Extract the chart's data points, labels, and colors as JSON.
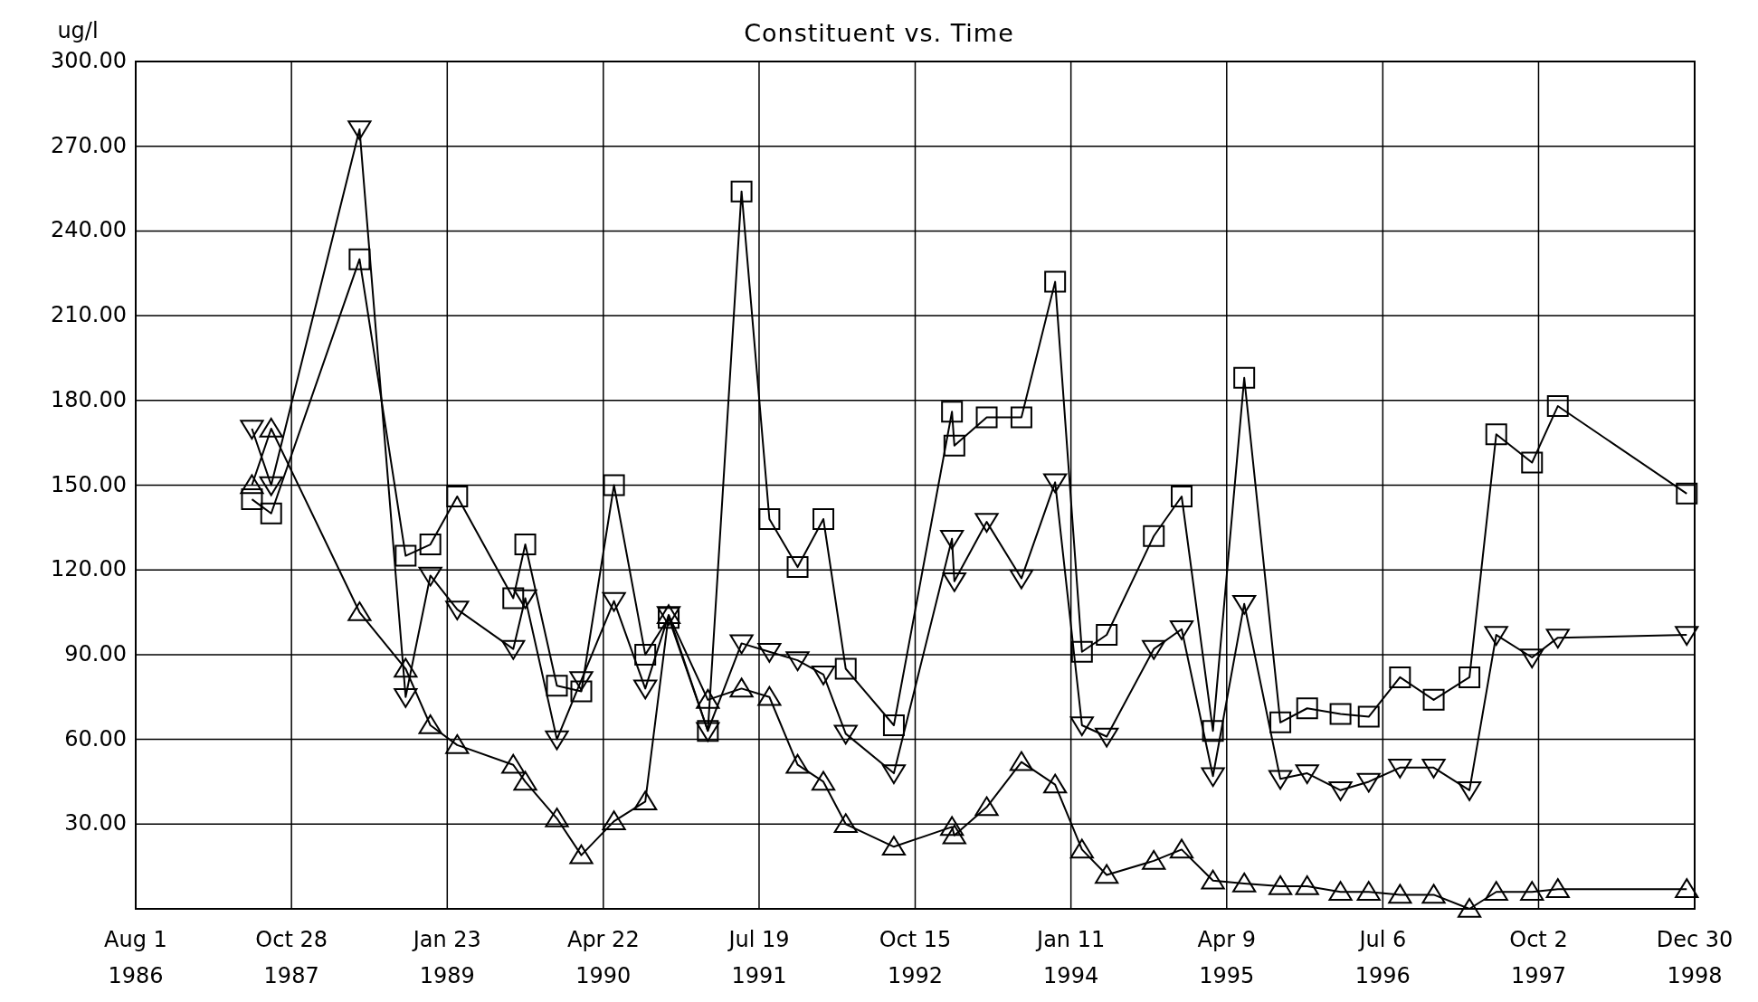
{
  "chart_data": {
    "type": "line",
    "title": "Constituent vs. Time",
    "ylabel": "ug/l",
    "x": [
      "1987-07-05",
      "1987-08-30",
      "1988-05-13",
      "1988-09-24",
      "1988-12-05",
      "1989-02-21",
      "1989-08-03",
      "1989-09-07",
      "1989-12-08",
      "1990-02-17",
      "1990-05-23",
      "1990-08-22",
      "1990-10-29",
      "1991-02-20",
      "1991-05-29",
      "1991-08-18",
      "1991-11-08",
      "1992-01-22",
      "1992-03-27",
      "1992-08-14",
      "1993-01-30",
      "1993-02-06",
      "1993-05-11",
      "1993-08-20",
      "1993-11-26",
      "1994-02-12",
      "1994-04-25",
      "1994-09-09",
      "1994-11-29",
      "1995-02-28",
      "1995-05-30",
      "1995-09-12",
      "1995-11-29",
      "1996-03-05",
      "1996-05-26",
      "1996-08-25",
      "1996-12-01",
      "1997-03-15",
      "1997-06-01",
      "1997-09-13",
      "1997-11-27",
      "1998-12-07"
    ],
    "series": [
      {
        "color": "#000000",
        "marker": "square",
        "values": [
          145,
          140,
          230,
          125,
          129,
          146,
          110,
          129,
          79,
          77,
          150,
          90,
          103,
          63,
          254,
          138,
          121,
          138,
          85,
          65,
          176,
          164,
          174,
          174,
          222,
          91,
          97,
          132,
          146,
          63,
          188,
          66,
          71,
          69,
          68,
          82,
          74,
          82,
          168,
          158,
          178,
          147
        ]
      },
      {
        "color": "#000000",
        "marker": "triangle-down",
        "values": [
          170,
          150,
          276,
          75,
          118,
          106,
          92,
          110,
          60,
          81,
          109,
          78,
          104,
          63,
          94,
          91,
          88,
          83,
          62,
          48,
          131,
          116,
          137,
          117,
          151,
          65,
          61,
          92,
          99,
          47,
          108,
          46,
          48,
          42,
          45,
          50,
          50,
          42,
          97,
          89,
          96,
          97
        ]
      },
      {
        "color": "#000000",
        "marker": "triangle",
        "values": [
          150,
          170,
          105,
          85,
          65,
          58,
          51,
          45,
          32,
          19,
          31,
          38,
          104,
          74,
          78,
          75,
          51,
          45,
          30,
          22,
          29,
          26,
          36,
          52,
          44,
          21,
          12,
          17,
          21,
          10,
          9,
          8,
          8,
          6,
          6,
          5,
          5,
          0,
          6,
          6,
          7,
          7
        ]
      }
    ],
    "xlim": [
      "1986-08-01",
      "1998-12-30"
    ],
    "xticks": [
      {
        "value": "1986-08-01",
        "label": "Aug 1\n1986"
      },
      {
        "value": "1987-10-28",
        "label": "Oct 28\n1987"
      },
      {
        "value": "1989-01-23",
        "label": "Jan 23\n1989"
      },
      {
        "value": "1990-04-22",
        "label": "Apr 22\n1990"
      },
      {
        "value": "1991-07-19",
        "label": "Jul 19\n1991"
      },
      {
        "value": "1992-10-15",
        "label": "Oct 15\n1992"
      },
      {
        "value": "1994-01-11",
        "label": "Jan 11\n1994"
      },
      {
        "value": "1995-04-09",
        "label": "Apr 9\n1995"
      },
      {
        "value": "1996-07-06",
        "label": "Jul 6\n1996"
      },
      {
        "value": "1997-10-02",
        "label": "Oct 2\n1997"
      },
      {
        "value": "1998-12-30",
        "label": "Dec 30\n1998"
      }
    ],
    "ylim": [
      0,
      300
    ],
    "yticks": [
      {
        "value": 30,
        "label": "30.00"
      },
      {
        "value": 60,
        "label": "60.00"
      },
      {
        "value": 90,
        "label": "90.00"
      },
      {
        "value": 120,
        "label": "120.00"
      },
      {
        "value": 150,
        "label": "150.00"
      },
      {
        "value": 180,
        "label": "180.00"
      },
      {
        "value": 210,
        "label": "210.00"
      },
      {
        "value": 240,
        "label": "240.00"
      },
      {
        "value": 270,
        "label": "270.00"
      },
      {
        "value": 300,
        "label": "300.00"
      }
    ],
    "grid": true,
    "line_style": "solid"
  }
}
